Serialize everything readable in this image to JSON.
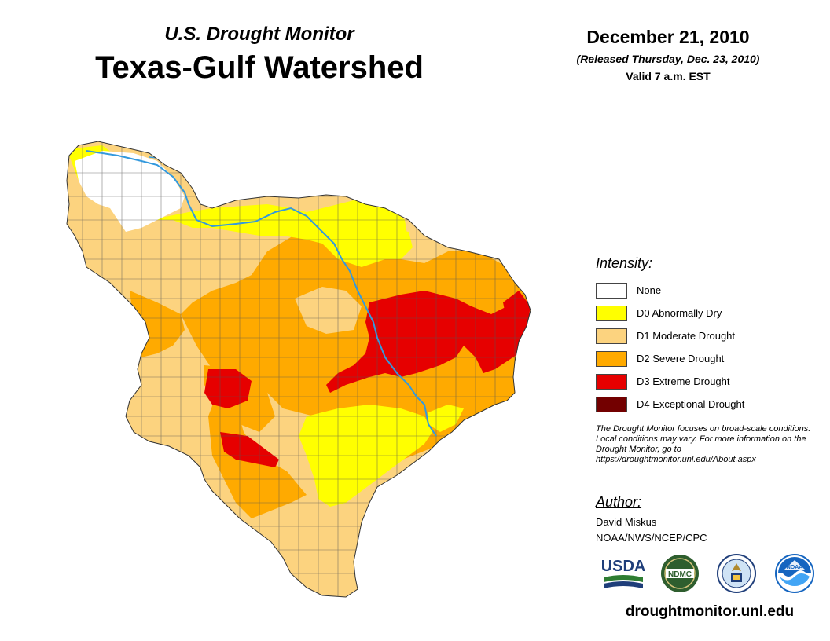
{
  "header": {
    "brand": "U.S. Drought Monitor",
    "title": "Texas-Gulf Watershed",
    "date": "December 21, 2010",
    "released": "(Released Thursday, Dec. 23, 2010)",
    "valid": "Valid 7 a.m. EST"
  },
  "legend": {
    "title": "Intensity:",
    "items": [
      {
        "label": "None",
        "color": "#ffffff"
      },
      {
        "label": "D0 Abnormally Dry",
        "color": "#ffff00"
      },
      {
        "label": "D1 Moderate Drought",
        "color": "#fcd37f"
      },
      {
        "label": "D2 Severe Drought",
        "color": "#ffaa00"
      },
      {
        "label": "D3 Extreme Drought",
        "color": "#e60000"
      },
      {
        "label": "D4 Exceptional Drought",
        "color": "#730000"
      }
    ]
  },
  "note": "The Drought Monitor focuses on broad-scale conditions. Local conditions may vary. For more information on the Drought Monitor, go to https://droughtmonitor.unl.edu/About.aspx",
  "author": {
    "title": "Author:",
    "name": "David Miskus",
    "org": "NOAA/NWS/NCEP/CPC"
  },
  "logos": {
    "usda": "USDA",
    "ndmc": "NDMC",
    "noaa": "NOAA"
  },
  "colors": {
    "river": "#3399dd",
    "county_line": "#555555",
    "ndmc_green": "#2e5e2e",
    "noaa_blue": "#1565c0"
  },
  "url": "droughtmonitor.unl.edu"
}
